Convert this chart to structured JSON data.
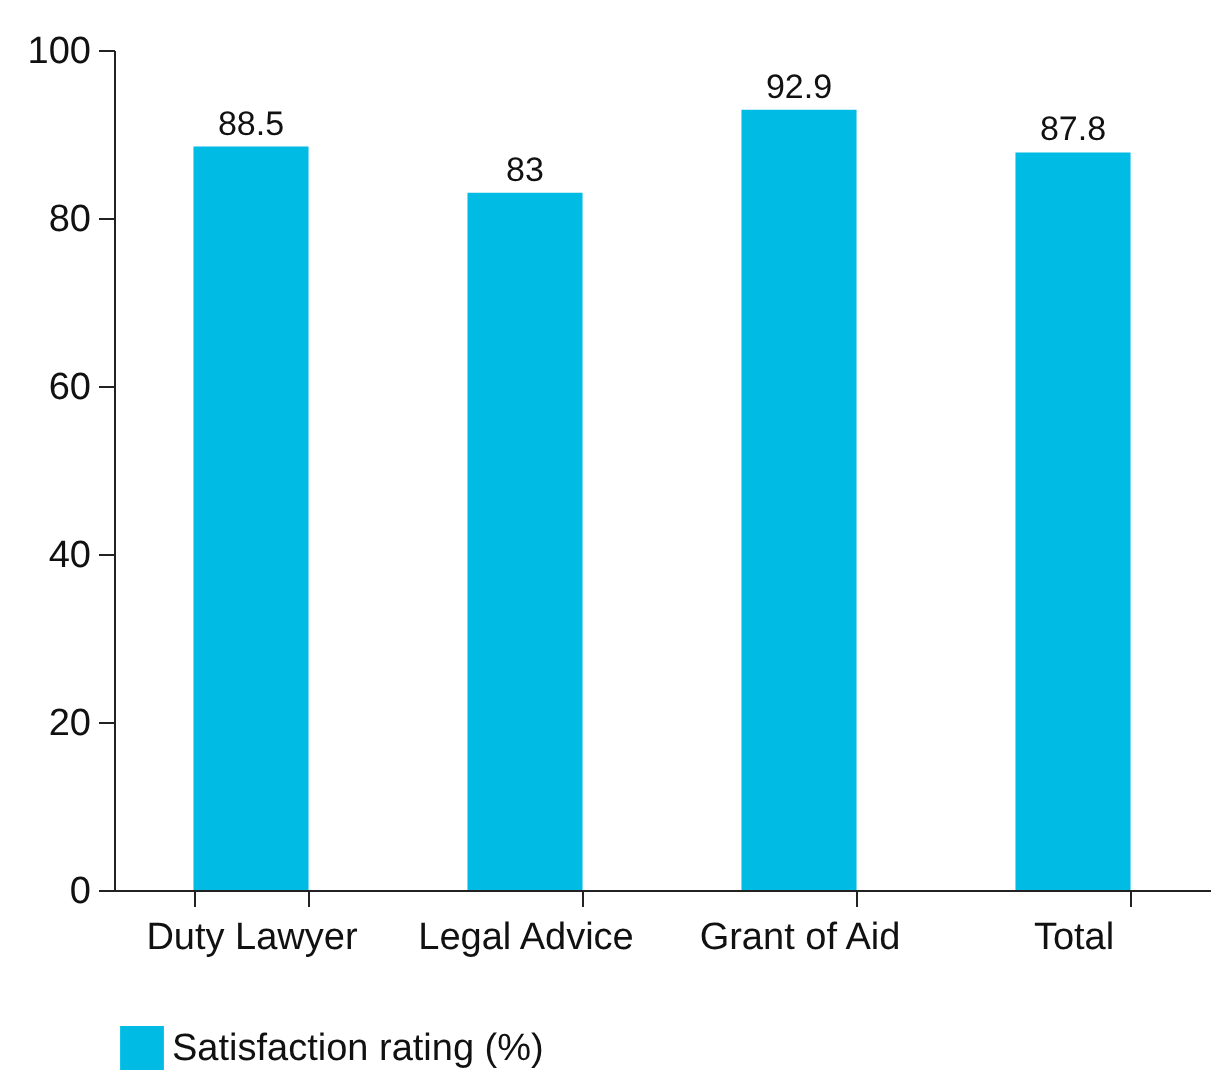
{
  "chart_data": {
    "type": "bar",
    "categories": [
      "Duty Lawyer",
      "Legal Advice",
      "Grant of Aid",
      "Total"
    ],
    "series": [
      {
        "name": "Satisfaction rating (%)",
        "color": "#00bce4",
        "values": [
          88.5,
          83,
          92.9,
          87.8
        ]
      }
    ],
    "ylim": [
      0,
      100
    ],
    "yticks": [
      0,
      20,
      40,
      60,
      80,
      100
    ],
    "grid": false,
    "legend": "bottom left",
    "data_labels": true
  }
}
